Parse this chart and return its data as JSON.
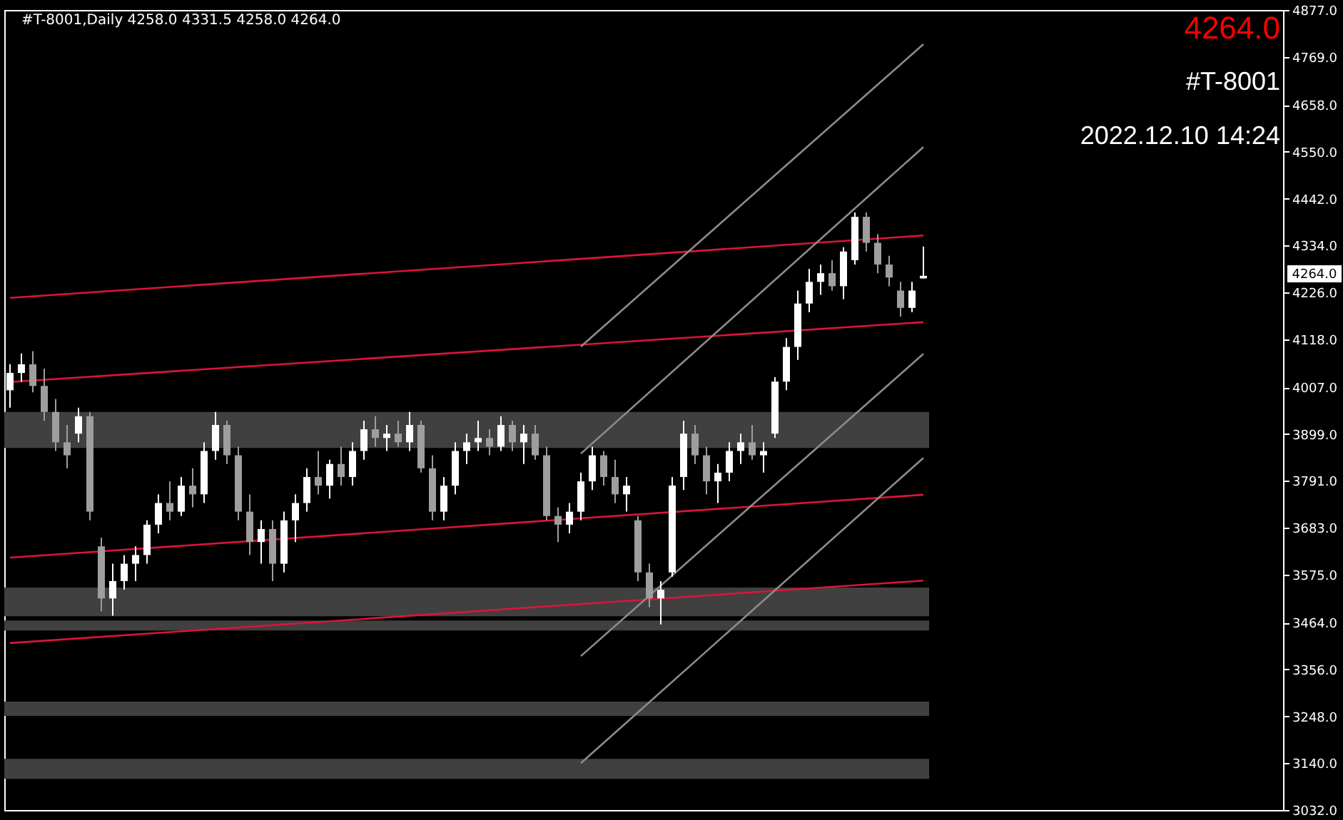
{
  "chart_data": {
    "type": "candlestick",
    "title": "#T-8001,Daily  4258.0 4331.5 4258.0 4264.0",
    "annotations": [
      "4264.0",
      "#T-8001",
      "2022.12.10 14:24",
      "4264.0"
    ],
    "categories": [
      null,
      null,
      null,
      null,
      null,
      null,
      null,
      null,
      null,
      null,
      null,
      null,
      null,
      null,
      null,
      null,
      null,
      null,
      null,
      null,
      null,
      null,
      null,
      null,
      null,
      null,
      null,
      null,
      null,
      null,
      null,
      null,
      null,
      null,
      null,
      null,
      null,
      null,
      null,
      null,
      null,
      null,
      null,
      null,
      null,
      null,
      null,
      null,
      null,
      null,
      null,
      null,
      null,
      null,
      null,
      null,
      null,
      null,
      null,
      null,
      null,
      null,
      null,
      null,
      null,
      null,
      null,
      null,
      null,
      null,
      null,
      null,
      null,
      null,
      null,
      null,
      null,
      null,
      null,
      null,
      null,
      null,
      null,
      null,
      null,
      null,
      null,
      null,
      null,
      null,
      null,
      null,
      null,
      null,
      null,
      null,
      null,
      null,
      null,
      null,
      null,
      null,
      null,
      null,
      null,
      null,
      null,
      null,
      null,
      null,
      null,
      null
    ],
    "tick_labels": "y",
    "ylim": [
      3032,
      4877
    ],
    "yticks": [
      {
        "value": 3032,
        "label": "3032.0"
      },
      {
        "value": 3140,
        "label": "3140.0"
      },
      {
        "value": 3248,
        "label": "3248.0"
      },
      {
        "value": 3356,
        "label": "3356.0"
      },
      {
        "value": 3464,
        "label": "3464.0"
      },
      {
        "value": 3575,
        "label": "3575.0"
      },
      {
        "value": 3683,
        "label": "3683.0"
      },
      {
        "value": 3791,
        "label": "3791.0"
      },
      {
        "value": 3899,
        "label": "3899.0"
      },
      {
        "value": 4007,
        "label": "4007.0"
      },
      {
        "value": 4118,
        "label": "4118.0"
      },
      {
        "value": 4226,
        "label": "4226.0"
      },
      {
        "value": 4334,
        "label": "4334.0"
      },
      {
        "value": 4442,
        "label": "4442.0"
      },
      {
        "value": 4550,
        "label": "4550.0"
      },
      {
        "value": 4658,
        "label": "4658.0"
      },
      {
        "value": 4769,
        "label": "4769.0"
      },
      {
        "value": 4877,
        "label": "4877.0"
      }
    ],
    "ohlc": [
      [
        4000,
        4060,
        3960,
        4040
      ],
      [
        4040,
        4085,
        4020,
        4060
      ],
      [
        4060,
        4090,
        3995,
        4010
      ],
      [
        4010,
        4050,
        3930,
        3950
      ],
      [
        3950,
        3980,
        3860,
        3880
      ],
      [
        3880,
        3920,
        3820,
        3850
      ],
      [
        3900,
        3960,
        3880,
        3940
      ],
      [
        3940,
        3950,
        3700,
        3720
      ],
      [
        3640,
        3660,
        3490,
        3520
      ],
      [
        3520,
        3600,
        3480,
        3560
      ],
      [
        3560,
        3620,
        3540,
        3600
      ],
      [
        3600,
        3640,
        3560,
        3620
      ],
      [
        3620,
        3700,
        3600,
        3690
      ],
      [
        3690,
        3760,
        3670,
        3740
      ],
      [
        3740,
        3790,
        3700,
        3720
      ],
      [
        3720,
        3800,
        3710,
        3780
      ],
      [
        3780,
        3820,
        3730,
        3760
      ],
      [
        3760,
        3880,
        3740,
        3860
      ],
      [
        3860,
        3950,
        3840,
        3920
      ],
      [
        3920,
        3930,
        3830,
        3850
      ],
      [
        3850,
        3870,
        3700,
        3720
      ],
      [
        3720,
        3760,
        3620,
        3650
      ],
      [
        3650,
        3700,
        3600,
        3680
      ],
      [
        3680,
        3700,
        3560,
        3600
      ],
      [
        3600,
        3720,
        3580,
        3700
      ],
      [
        3700,
        3760,
        3650,
        3740
      ],
      [
        3740,
        3820,
        3720,
        3800
      ],
      [
        3800,
        3860,
        3760,
        3780
      ],
      [
        3780,
        3840,
        3750,
        3830
      ],
      [
        3830,
        3870,
        3780,
        3800
      ],
      [
        3800,
        3880,
        3780,
        3860
      ],
      [
        3860,
        3930,
        3840,
        3910
      ],
      [
        3910,
        3940,
        3870,
        3890
      ],
      [
        3890,
        3920,
        3860,
        3900
      ],
      [
        3900,
        3930,
        3870,
        3880
      ],
      [
        3880,
        3950,
        3860,
        3920
      ],
      [
        3920,
        3930,
        3810,
        3820
      ],
      [
        3820,
        3850,
        3700,
        3720
      ],
      [
        3720,
        3800,
        3700,
        3780
      ],
      [
        3780,
        3880,
        3760,
        3860
      ],
      [
        3860,
        3900,
        3830,
        3880
      ],
      [
        3880,
        3930,
        3860,
        3890
      ],
      [
        3890,
        3910,
        3850,
        3870
      ],
      [
        3870,
        3940,
        3860,
        3920
      ],
      [
        3920,
        3930,
        3860,
        3880
      ],
      [
        3880,
        3920,
        3830,
        3900
      ],
      [
        3900,
        3920,
        3840,
        3850
      ],
      [
        3850,
        3870,
        3700,
        3710
      ],
      [
        3710,
        3730,
        3650,
        3690
      ],
      [
        3690,
        3740,
        3670,
        3720
      ],
      [
        3720,
        3810,
        3700,
        3790
      ],
      [
        3790,
        3870,
        3770,
        3850
      ],
      [
        3850,
        3860,
        3780,
        3800
      ],
      [
        3800,
        3840,
        3740,
        3760
      ],
      [
        3760,
        3800,
        3720,
        3780
      ],
      [
        3700,
        3710,
        3560,
        3580
      ],
      [
        3580,
        3600,
        3500,
        3520
      ],
      [
        3520,
        3560,
        3460,
        3540
      ],
      [
        3580,
        3800,
        3570,
        3780
      ],
      [
        3800,
        3930,
        3770,
        3900
      ],
      [
        3900,
        3920,
        3830,
        3850
      ],
      [
        3850,
        3870,
        3760,
        3790
      ],
      [
        3790,
        3830,
        3740,
        3810
      ],
      [
        3810,
        3880,
        3790,
        3860
      ],
      [
        3860,
        3900,
        3830,
        3880
      ],
      [
        3880,
        3920,
        3840,
        3850
      ],
      [
        3850,
        3880,
        3810,
        3860
      ],
      [
        3900,
        4030,
        3890,
        4020
      ],
      [
        4020,
        4120,
        4000,
        4100
      ],
      [
        4100,
        4230,
        4070,
        4200
      ],
      [
        4200,
        4280,
        4180,
        4250
      ],
      [
        4250,
        4290,
        4220,
        4270
      ],
      [
        4270,
        4300,
        4230,
        4240
      ],
      [
        4240,
        4330,
        4210,
        4320
      ],
      [
        4300,
        4410,
        4290,
        4400
      ],
      [
        4400,
        4410,
        4320,
        4340
      ],
      [
        4340,
        4360,
        4270,
        4290
      ],
      [
        4290,
        4310,
        4240,
        4260
      ],
      [
        4230,
        4250,
        4170,
        4190
      ],
      [
        4190,
        4250,
        4180,
        4230
      ],
      [
        4258,
        4331.5,
        4258,
        4264
      ],
      null,
      null,
      null,
      null,
      null,
      null,
      null,
      null,
      null,
      null,
      null,
      null,
      null,
      null,
      null,
      null,
      null,
      null,
      null,
      null,
      null,
      null,
      null,
      null,
      null,
      null,
      null,
      null,
      null,
      null,
      null
    ],
    "colors": [
      "#ffffff",
      "#ffffff",
      "#9e9e9e",
      "#9e9e9e",
      "#9e9e9e",
      "#9e9e9e",
      "#ffffff",
      "#9e9e9e",
      "#9e9e9e",
      "#ffffff",
      "#ffffff",
      "#ffffff",
      "#ffffff",
      "#ffffff",
      "#9e9e9e",
      "#ffffff",
      "#9e9e9e",
      "#ffffff",
      "#ffffff",
      "#9e9e9e",
      "#9e9e9e",
      "#9e9e9e",
      "#ffffff",
      "#9e9e9e",
      "#ffffff",
      "#ffffff",
      "#ffffff",
      "#9e9e9e",
      "#ffffff",
      "#9e9e9e",
      "#ffffff",
      "#ffffff",
      "#9e9e9e",
      "#ffffff",
      "#9e9e9e",
      "#ffffff",
      "#9e9e9e",
      "#9e9e9e",
      "#ffffff",
      "#ffffff",
      "#ffffff",
      "#ffffff",
      "#9e9e9e",
      "#ffffff",
      "#9e9e9e",
      "#ffffff",
      "#9e9e9e",
      "#9e9e9e",
      "#9e9e9e",
      "#ffffff",
      "#ffffff",
      "#ffffff",
      "#9e9e9e",
      "#9e9e9e",
      "#ffffff",
      "#9e9e9e",
      "#9e9e9e",
      "#ffffff",
      "#ffffff",
      "#ffffff",
      "#9e9e9e",
      "#9e9e9e",
      "#ffffff",
      "#ffffff",
      "#ffffff",
      "#9e9e9e",
      "#ffffff",
      "#ffffff",
      "#ffffff",
      "#ffffff",
      "#ffffff",
      "#ffffff",
      "#9e9e9e",
      "#ffffff",
      "#ffffff",
      "#9e9e9e",
      "#9e9e9e",
      "#9e9e9e",
      "#9e9e9e",
      "#ffffff",
      "#ffffff",
      null,
      null,
      null,
      null,
      null,
      null,
      null,
      null,
      null,
      null,
      null,
      null,
      null,
      null,
      null,
      null,
      null,
      null,
      null,
      null,
      null,
      null,
      null,
      null,
      null,
      null,
      null,
      null,
      null,
      null,
      null
    ],
    "series": [
      {
        "type": "line",
        "color": "#dc143c",
        "values": [
          4213,
          null,
          null,
          null,
          null,
          null,
          null,
          null,
          null,
          null,
          null,
          null,
          null,
          null,
          null,
          null,
          null,
          null,
          null,
          null,
          null,
          null,
          null,
          null,
          null,
          null,
          null,
          null,
          null,
          null,
          null,
          null,
          null,
          null,
          null,
          null,
          null,
          null,
          null,
          null,
          null,
          null,
          null,
          null,
          null,
          null,
          null,
          null,
          null,
          null,
          null,
          null,
          null,
          null,
          null,
          null,
          null,
          null,
          null,
          null,
          null,
          null,
          null,
          null,
          null,
          null,
          null,
          null,
          null,
          null,
          null,
          null,
          null,
          null,
          null,
          null,
          null,
          null,
          null,
          null,
          4357,
          null,
          null,
          null,
          null,
          null,
          null,
          null,
          null,
          null,
          null,
          null,
          null,
          null,
          null,
          null,
          null,
          null,
          null,
          null,
          null,
          null,
          null,
          null,
          null,
          null,
          null,
          null,
          null,
          null,
          null,
          null
        ]
      },
      {
        "type": "line",
        "color": "#dc143c",
        "values": [
          4019,
          null,
          null,
          null,
          null,
          null,
          null,
          null,
          null,
          null,
          null,
          null,
          null,
          null,
          null,
          null,
          null,
          null,
          null,
          null,
          null,
          null,
          null,
          null,
          null,
          null,
          null,
          null,
          null,
          null,
          null,
          null,
          null,
          null,
          null,
          null,
          null,
          null,
          null,
          null,
          null,
          null,
          null,
          null,
          null,
          null,
          null,
          null,
          null,
          null,
          null,
          null,
          null,
          null,
          null,
          null,
          null,
          null,
          null,
          null,
          null,
          null,
          null,
          null,
          null,
          null,
          null,
          null,
          null,
          null,
          null,
          null,
          null,
          null,
          null,
          null,
          null,
          null,
          null,
          null,
          4157,
          null,
          null,
          null,
          null,
          null,
          null,
          null,
          null,
          null,
          null,
          null,
          null,
          null,
          null,
          null,
          null,
          null,
          null,
          null,
          null,
          null,
          null,
          null,
          null,
          null,
          null,
          null,
          null,
          null,
          null,
          null
        ]
      },
      {
        "type": "line",
        "color": "#dc143c",
        "values": [
          3614,
          null,
          null,
          null,
          null,
          null,
          null,
          null,
          null,
          null,
          null,
          null,
          null,
          null,
          null,
          null,
          null,
          null,
          null,
          null,
          null,
          null,
          null,
          null,
          null,
          null,
          null,
          null,
          null,
          null,
          null,
          null,
          null,
          null,
          null,
          null,
          null,
          null,
          null,
          null,
          null,
          null,
          null,
          null,
          null,
          null,
          null,
          null,
          null,
          null,
          null,
          null,
          null,
          null,
          null,
          null,
          null,
          null,
          null,
          null,
          null,
          null,
          null,
          null,
          null,
          null,
          null,
          null,
          null,
          null,
          null,
          null,
          null,
          null,
          null,
          null,
          null,
          null,
          null,
          null,
          3759,
          null,
          null,
          null,
          null,
          null,
          null,
          null,
          null,
          null,
          null,
          null,
          null,
          null,
          null,
          null,
          null,
          null,
          null,
          null,
          null,
          null,
          null,
          null,
          null,
          null,
          null,
          null,
          null,
          null,
          null,
          null
        ]
      },
      {
        "type": "line",
        "color": "#dc143c",
        "values": [
          3417,
          null,
          null,
          null,
          null,
          null,
          null,
          null,
          null,
          null,
          null,
          null,
          null,
          null,
          null,
          null,
          null,
          null,
          null,
          null,
          null,
          null,
          null,
          null,
          null,
          null,
          null,
          null,
          null,
          null,
          null,
          null,
          null,
          null,
          null,
          null,
          null,
          null,
          null,
          null,
          null,
          null,
          null,
          null,
          null,
          null,
          null,
          null,
          null,
          null,
          null,
          null,
          null,
          null,
          null,
          null,
          null,
          null,
          null,
          null,
          null,
          null,
          null,
          null,
          null,
          null,
          null,
          null,
          null,
          null,
          null,
          null,
          null,
          null,
          null,
          null,
          null,
          null,
          null,
          null,
          3561,
          null,
          null,
          null,
          null,
          null,
          null,
          null,
          null,
          null,
          null,
          null,
          null,
          null,
          null,
          null,
          null,
          null,
          null,
          null,
          null,
          null,
          null,
          null,
          null,
          null,
          null,
          null,
          null,
          null,
          null,
          null
        ]
      },
      {
        "type": "line",
        "color": "#8c8c8c",
        "values": [
          null,
          null,
          null,
          null,
          null,
          null,
          null,
          null,
          null,
          null,
          null,
          null,
          null,
          null,
          null,
          null,
          null,
          null,
          null,
          null,
          null,
          null,
          null,
          null,
          null,
          null,
          null,
          null,
          null,
          null,
          null,
          null,
          null,
          null,
          null,
          null,
          null,
          null,
          null,
          null,
          null,
          null,
          null,
          null,
          null,
          null,
          null,
          null,
          null,
          null,
          4101,
          null,
          null,
          null,
          null,
          null,
          null,
          null,
          null,
          null,
          null,
          null,
          null,
          null,
          null,
          null,
          null,
          null,
          null,
          null,
          null,
          null,
          null,
          null,
          null,
          null,
          null,
          null,
          null,
          null,
          4798,
          null,
          null,
          null,
          null,
          null,
          null,
          null,
          null,
          null,
          null,
          null,
          null,
          null,
          null,
          null,
          null,
          null,
          null,
          null,
          null,
          null,
          null,
          null,
          null,
          null,
          null,
          null,
          null,
          null,
          null,
          null
        ]
      },
      {
        "type": "line",
        "color": "#8c8c8c",
        "values": [
          null,
          null,
          null,
          null,
          null,
          null,
          null,
          null,
          null,
          null,
          null,
          null,
          null,
          null,
          null,
          null,
          null,
          null,
          null,
          null,
          null,
          null,
          null,
          null,
          null,
          null,
          null,
          null,
          null,
          null,
          null,
          null,
          null,
          null,
          null,
          null,
          null,
          null,
          null,
          null,
          null,
          null,
          null,
          null,
          null,
          null,
          null,
          null,
          null,
          null,
          3854,
          null,
          null,
          null,
          null,
          null,
          null,
          null,
          null,
          null,
          null,
          null,
          null,
          null,
          null,
          null,
          null,
          null,
          null,
          null,
          null,
          null,
          null,
          null,
          null,
          null,
          null,
          null,
          null,
          null,
          4561,
          null,
          null,
          null,
          null,
          null,
          null,
          null,
          null,
          null,
          null,
          null,
          null,
          null,
          null,
          null,
          null,
          null,
          null,
          null,
          null,
          null,
          null,
          null,
          null,
          null,
          null,
          null,
          null,
          null,
          null,
          null
        ]
      },
      {
        "type": "line",
        "color": "#8c8c8c",
        "values": [
          null,
          null,
          null,
          null,
          null,
          null,
          null,
          null,
          null,
          null,
          null,
          null,
          null,
          null,
          null,
          null,
          null,
          null,
          null,
          null,
          null,
          null,
          null,
          null,
          null,
          null,
          null,
          null,
          null,
          null,
          null,
          null,
          null,
          null,
          null,
          null,
          null,
          null,
          null,
          null,
          null,
          null,
          null,
          null,
          null,
          null,
          null,
          null,
          null,
          null,
          3387,
          null,
          null,
          null,
          null,
          null,
          null,
          null,
          null,
          null,
          null,
          null,
          null,
          null,
          null,
          null,
          null,
          null,
          null,
          null,
          null,
          null,
          null,
          null,
          null,
          null,
          null,
          null,
          null,
          null,
          4084,
          null,
          null,
          null,
          null,
          null,
          null,
          null,
          null,
          null,
          null,
          null,
          null,
          null,
          null,
          null,
          null,
          null,
          null,
          null,
          null,
          null,
          null,
          null,
          null,
          null,
          null,
          null,
          null,
          null,
          null,
          null
        ]
      },
      {
        "type": "line",
        "color": "#8c8c8c",
        "values": [
          null,
          null,
          null,
          null,
          null,
          null,
          null,
          null,
          null,
          null,
          null,
          null,
          null,
          null,
          null,
          null,
          null,
          null,
          null,
          null,
          null,
          null,
          null,
          null,
          null,
          null,
          null,
          null,
          null,
          null,
          null,
          null,
          null,
          null,
          null,
          null,
          null,
          null,
          null,
          null,
          null,
          null,
          null,
          null,
          null,
          null,
          null,
          null,
          null,
          null,
          3140,
          null,
          null,
          null,
          null,
          null,
          null,
          null,
          null,
          null,
          null,
          null,
          null,
          null,
          null,
          null,
          null,
          null,
          null,
          null,
          null,
          null,
          null,
          null,
          null,
          null,
          null,
          null,
          null,
          null,
          3844,
          null,
          null,
          null,
          null,
          null,
          null,
          null,
          null,
          null,
          null,
          null,
          null,
          null,
          null,
          null,
          null,
          null,
          null,
          null,
          null,
          null,
          null,
          null,
          null,
          null,
          null,
          null,
          null,
          null,
          null,
          null
        ]
      }
    ],
    "bands": [
      {
        "axis": "y",
        "from": 3867,
        "to": 3950,
        "color": "#404040"
      },
      {
        "axis": "y",
        "from": 3479,
        "to": 3545,
        "color": "#404040"
      },
      {
        "axis": "y",
        "from": 3446,
        "to": 3469,
        "color": "#404040"
      },
      {
        "axis": "y",
        "from": 3249,
        "to": 3282,
        "color": "#404040"
      },
      {
        "axis": "y",
        "from": 3104,
        "to": 3150,
        "color": "#404040"
      }
    ]
  }
}
